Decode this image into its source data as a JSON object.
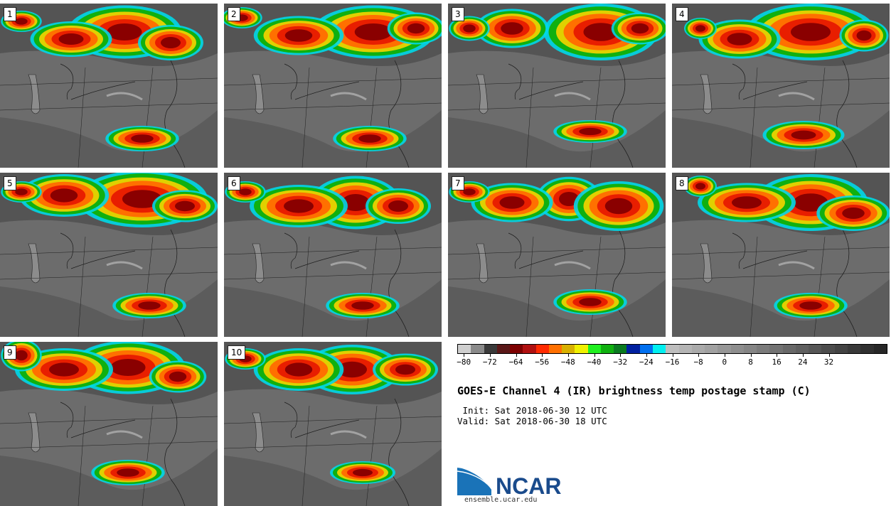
{
  "panels": [
    {
      "label": "1"
    },
    {
      "label": "2"
    },
    {
      "label": "3"
    },
    {
      "label": "4"
    },
    {
      "label": "5"
    },
    {
      "label": "6"
    },
    {
      "label": "7"
    },
    {
      "label": "8"
    },
    {
      "label": "9"
    },
    {
      "label": "10"
    }
  ],
  "colorbar": {
    "colors": [
      "#cfcfcf",
      "#8a8a8a",
      "#3a3a3a",
      "#5a1818",
      "#7d0000",
      "#b01010",
      "#ff2a00",
      "#ff7000",
      "#d8b000",
      "#f0f000",
      "#20f020",
      "#10b010",
      "#0a7a20",
      "#0020a0",
      "#0070f0",
      "#00f0f0",
      "#bdbdbd",
      "#b4b4b4",
      "#aaaaaa",
      "#a1a1a1",
      "#979797",
      "#8e8e8e",
      "#858585",
      "#7b7b7b",
      "#727272",
      "#686868",
      "#5f5f5f",
      "#565656",
      "#4c4c4c",
      "#434343",
      "#393939",
      "#303030",
      "#272727"
    ],
    "tick_labels": [
      "−80",
      "−72",
      "−64",
      "−56",
      "−48",
      "−40",
      "−32",
      "−24",
      "−16",
      "−8",
      "0",
      "8",
      "16",
      "24",
      "32"
    ]
  },
  "title": "GOES-E Channel 4 (IR) brightness temp postage stamp (C)",
  "init_line": " Init: Sat 2018-06-30 12 UTC",
  "valid_line": "Valid: Sat 2018-06-30 18 UTC",
  "logo_text": "NCAR",
  "url": "ensemble.ucar.edu"
}
